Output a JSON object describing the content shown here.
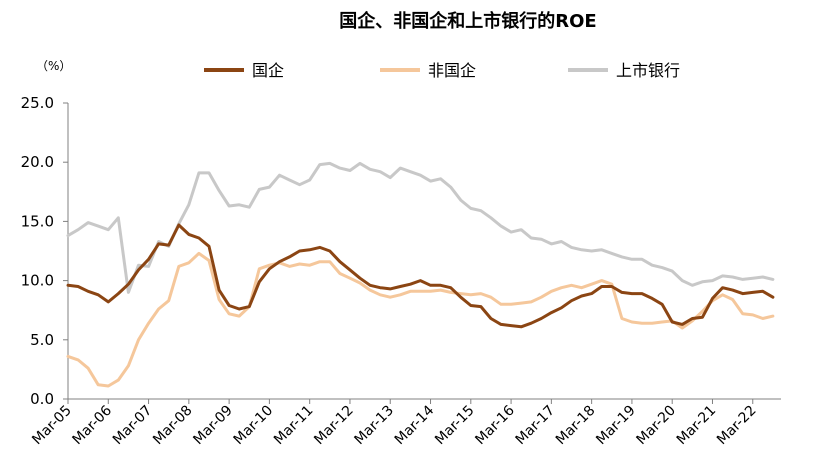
{
  "chart_data": {
    "type": "line",
    "title": "国企、非国企和上市银行的ROE",
    "ylabel": "（%）",
    "xlabel": "",
    "ylim": [
      0,
      25
    ],
    "yticks": [
      "0.0",
      "5.0",
      "10.0",
      "15.0",
      "20.0",
      "25.0"
    ],
    "xticks": [
      "Mar-05",
      "Mar-06",
      "Mar-07",
      "Mar-08",
      "Mar-09",
      "Mar-10",
      "Mar-11",
      "Mar-12",
      "Mar-13",
      "Mar-14",
      "Mar-15",
      "Mar-16",
      "Mar-17",
      "Mar-18",
      "Mar-19",
      "Mar-20",
      "Mar-21",
      "Mar-22"
    ],
    "x_start": "Mar-05",
    "x_end": "Dec-22",
    "x_frequency": "quarterly",
    "legend_position": "top",
    "grid": false,
    "series": [
      {
        "name": "国企",
        "color": "#8B4513",
        "values": [
          9.6,
          9.5,
          9.1,
          8.8,
          8.2,
          8.9,
          9.7,
          10.9,
          11.8,
          13.1,
          13.0,
          14.7,
          13.9,
          13.6,
          12.9,
          9.2,
          7.9,
          7.6,
          7.8,
          9.9,
          11.0,
          11.6,
          12.0,
          12.5,
          12.6,
          12.8,
          12.5,
          11.6,
          10.9,
          10.2,
          9.6,
          9.4,
          9.3,
          9.5,
          9.7,
          10.0,
          9.6,
          9.6,
          9.4,
          8.6,
          7.9,
          7.8,
          6.8,
          6.3,
          6.2,
          6.1,
          6.4,
          6.8,
          7.3,
          7.7,
          8.3,
          8.7,
          8.9,
          9.5,
          9.5,
          9.0,
          8.9,
          8.9,
          8.5,
          8.0,
          6.5,
          6.3,
          6.8,
          6.9,
          8.5,
          9.4,
          9.2,
          8.9,
          9.0,
          9.1,
          8.6
        ],
        "label_key": "legend.soe"
      },
      {
        "name": "非国企",
        "color": "#F5C79B",
        "values": [
          3.6,
          3.3,
          2.6,
          1.2,
          1.1,
          1.6,
          2.8,
          5.0,
          6.4,
          7.6,
          8.3,
          11.2,
          11.5,
          12.3,
          11.7,
          8.4,
          7.2,
          7.0,
          7.8,
          11.0,
          11.3,
          11.5,
          11.2,
          11.4,
          11.3,
          11.6,
          11.6,
          10.6,
          10.2,
          9.8,
          9.2,
          8.8,
          8.6,
          8.8,
          9.1,
          9.1,
          9.1,
          9.2,
          9.0,
          8.9,
          8.8,
          8.9,
          8.6,
          8.0,
          8.0,
          8.1,
          8.2,
          8.6,
          9.1,
          9.4,
          9.6,
          9.4,
          9.7,
          10.0,
          9.7,
          6.8,
          6.5,
          6.4,
          6.4,
          6.5,
          6.6,
          6.0,
          6.6,
          7.4,
          8.3,
          8.8,
          8.4,
          7.2,
          7.1,
          6.8,
          7.0
        ],
        "label_key": "legend.non_soe"
      },
      {
        "name": "上市银行",
        "color": "#C8C8C8",
        "values": [
          13.8,
          14.3,
          14.9,
          14.6,
          14.3,
          15.3,
          9.0,
          11.3,
          11.2,
          13.3,
          12.9,
          14.8,
          16.4,
          19.1,
          19.1,
          17.6,
          16.3,
          16.4,
          16.2,
          17.7,
          17.9,
          18.9,
          18.5,
          18.1,
          18.5,
          19.8,
          19.9,
          19.5,
          19.3,
          19.9,
          19.4,
          19.2,
          18.7,
          19.5,
          19.2,
          18.9,
          18.4,
          18.6,
          17.9,
          16.8,
          16.1,
          15.9,
          15.3,
          14.6,
          14.1,
          14.3,
          13.6,
          13.5,
          13.1,
          13.3,
          12.8,
          12.6,
          12.5,
          12.6,
          12.3,
          12.0,
          11.8,
          11.8,
          11.3,
          11.1,
          10.8,
          10.0,
          9.6,
          9.9,
          10.0,
          10.4,
          10.3,
          10.1,
          10.2,
          10.3,
          10.1
        ],
        "label_key": "legend.banks"
      }
    ]
  },
  "legend": {
    "soe": "国企",
    "non_soe": "非国企",
    "banks": "上市银行"
  }
}
